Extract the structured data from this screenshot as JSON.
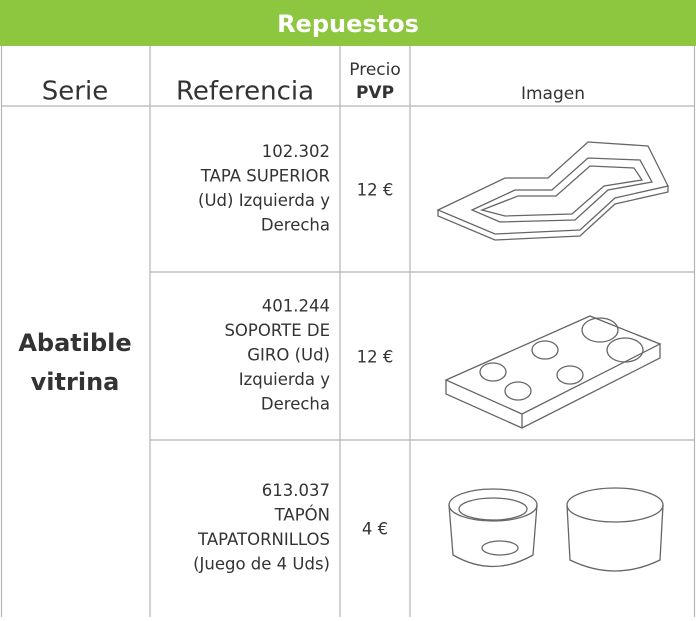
{
  "header": {
    "title": "Repuestos"
  },
  "columns": {
    "serie": "Serie",
    "referencia": "Referencia",
    "precio": [
      "Precio",
      "PVP"
    ],
    "imagen": "Imagen"
  },
  "serie": [
    "Abatible",
    "vitrina"
  ],
  "rows": [
    {
      "referencia": [
        "102.302",
        "TAPA SUPERIOR",
        "(Ud)  Izquierda y",
        "Derecha"
      ],
      "precio": "12 €"
    },
    {
      "referencia": [
        "401.244",
        "SOPORTE DE",
        "GIRO (Ud)",
        "Izquierda y",
        "Derecha"
      ],
      "precio": "12 €"
    },
    {
      "referencia": [
        "613.037",
        "TAPÓN",
        "TAPATORNILLOS",
        "(Juego de 4 Uds)"
      ],
      "precio": "4 €"
    }
  ]
}
